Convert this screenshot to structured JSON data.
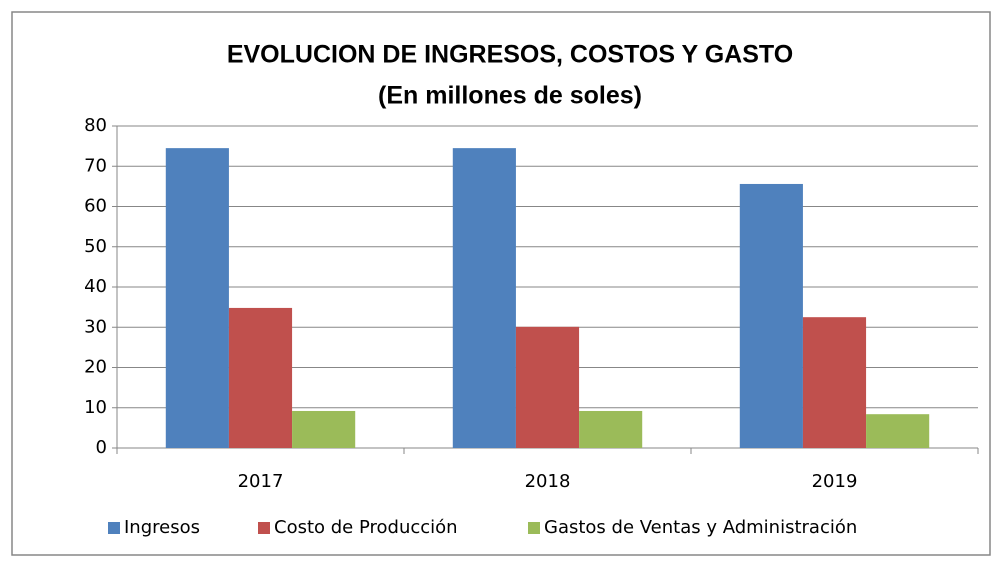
{
  "chart_data": {
    "type": "bar",
    "title": "EVOLUCION DE INGRESOS, COSTOS Y GASTO",
    "subtitle": "(En millones de soles)",
    "categories": [
      "2017",
      "2018",
      "2019"
    ],
    "series": [
      {
        "name": "Ingresos",
        "color": "#4f81bd",
        "values": [
          74.5,
          74.5,
          65.6
        ]
      },
      {
        "name": "Costo de Producción",
        "color": "#c0504d",
        "values": [
          34.8,
          30.1,
          32.5
        ]
      },
      {
        "name": "Gastos de Ventas y Administración",
        "color": "#9bbb59",
        "values": [
          9.2,
          9.2,
          8.4
        ]
      }
    ],
    "ylim": [
      0,
      80
    ],
    "yticks": [
      0,
      10,
      20,
      30,
      40,
      50,
      60,
      70,
      80
    ],
    "grid": true,
    "legend": "bottom"
  }
}
